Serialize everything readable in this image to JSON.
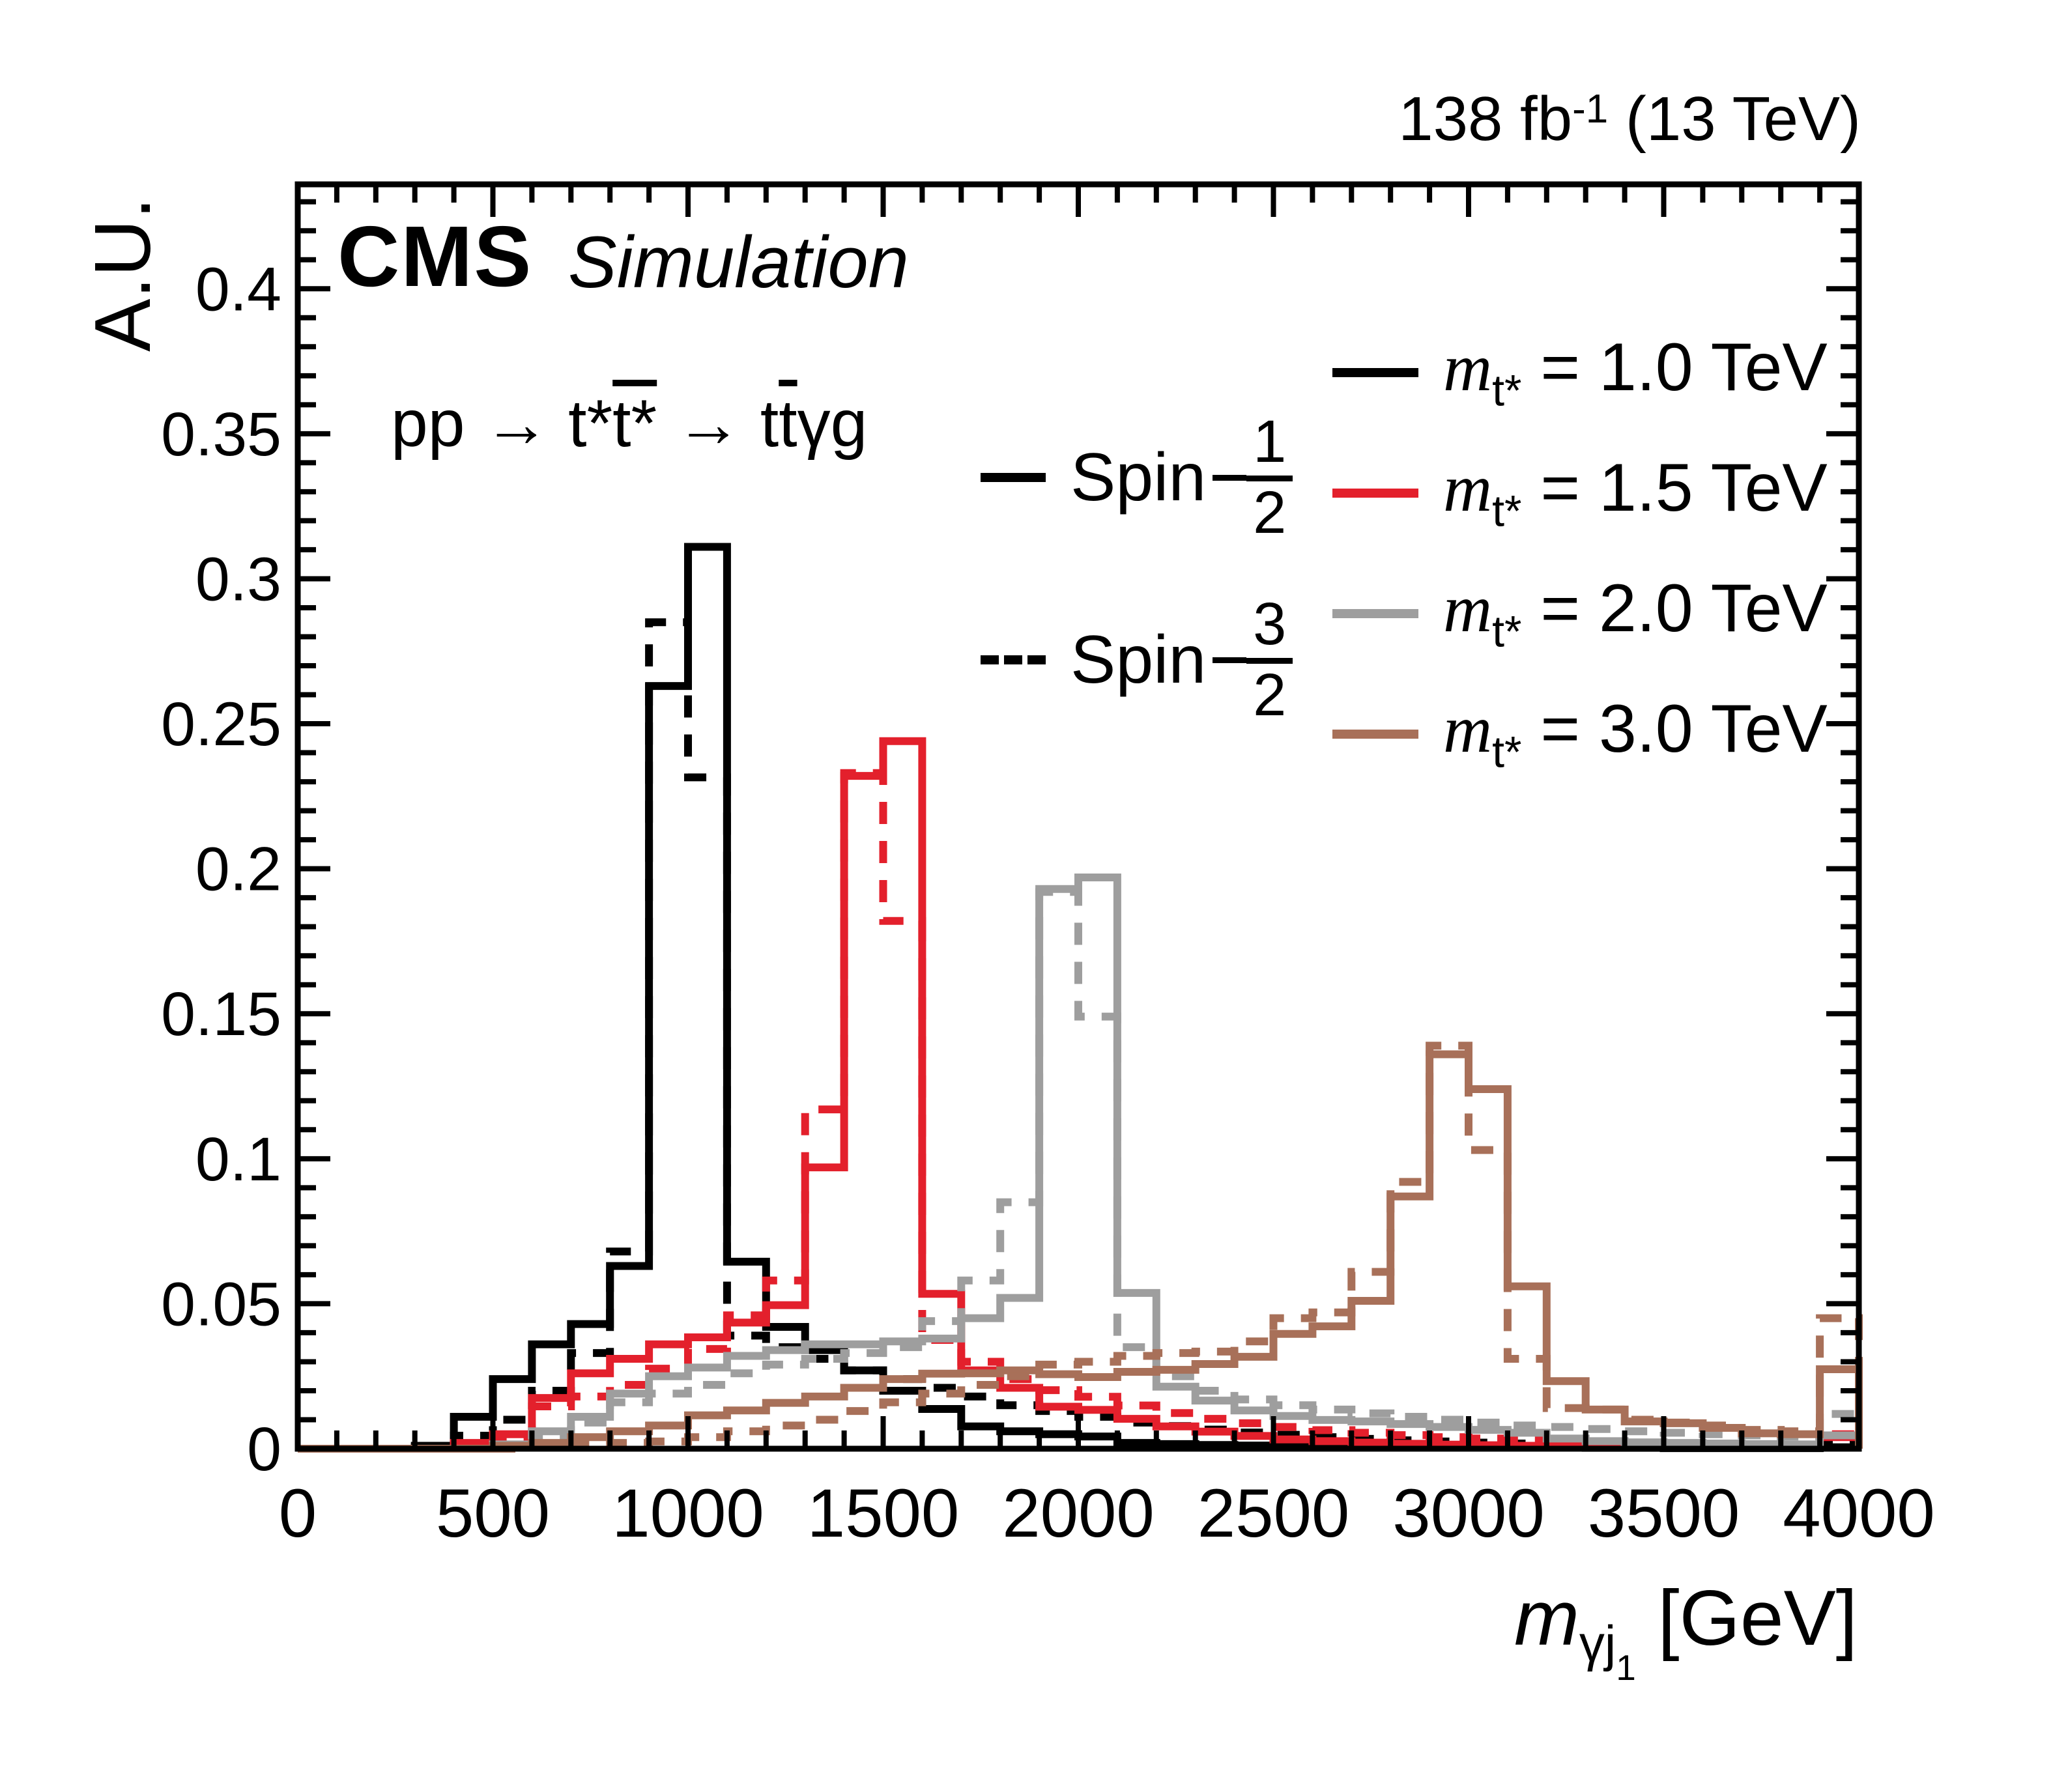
{
  "header": {
    "experiment": "CMS",
    "experiment_label": "Simulation",
    "lumi_a": "138 fb",
    "lumi_sup": "-1",
    "lumi_b": " (13 TeV)"
  },
  "process": {
    "a": "pp → t*",
    "ov1": "t*",
    "b": " → t",
    "ov2": "t",
    "c": "γg"
  },
  "axes": {
    "y_label": "A.U.",
    "x_label_symbol": "m",
    "x_label_sub": "γj",
    "x_label_subsub": "1",
    "x_label_unit": " [GeV]"
  },
  "legend_spin": [
    {
      "label": "Spin",
      "num": "1",
      "den": "2",
      "line": "solid"
    },
    {
      "label": "Spin",
      "num": "3",
      "den": "2",
      "line": "dashed"
    }
  ],
  "legend_mass": [
    {
      "m": "m",
      "sub": "t*",
      "rest": "= 1.0 TeV",
      "color": "#000000"
    },
    {
      "m": "m",
      "sub": "t*",
      "rest": "= 1.5 TeV",
      "color": "#e3202c"
    },
    {
      "m": "m",
      "sub": "t*",
      "rest": "= 2.0 TeV",
      "color": "#9e9e9e"
    },
    {
      "m": "m",
      "sub": "t*",
      "rest": "= 3.0 TeV",
      "color": "#a87059"
    }
  ],
  "chart_data": {
    "type": "histogram-step",
    "title": "CMS Simulation",
    "xlabel": "m_gamma-j1 [GeV]",
    "ylabel": "A.U.",
    "annotation": "pp -> t* t*bar -> t tbar gamma g",
    "lumi": "138 fb^-1 (13 TeV)",
    "xlim": [
      0,
      4000
    ],
    "ylim": [
      0,
      0.436
    ],
    "x_major_step": 500,
    "x_minor_step": 100,
    "y_major_step": 0.05,
    "y_minor_step": 0.01,
    "grid": false,
    "legend_position": "top-right",
    "bin_start": 0,
    "bin_width": 100,
    "n_bins": 40,
    "x_tick_labels": [
      "0",
      "500",
      "1000",
      "1500",
      "2000",
      "2500",
      "3000",
      "3500",
      "4000"
    ],
    "y_tick_labels": [
      "0",
      "0.05",
      "0.1",
      "0.15",
      "0.2",
      "0.25",
      "0.3",
      "0.35",
      "0.4"
    ],
    "series": [
      {
        "name": "m_t* = 1.0 TeV, Spin 1/2",
        "color": "#000000",
        "dashed": false,
        "values": [
          0,
          0,
          0,
          0.001,
          0.011,
          0.024,
          0.036,
          0.043,
          0.063,
          0.263,
          0.311,
          0.0645,
          0.042,
          0.034,
          0.027,
          0.02,
          0.0137,
          0.0077,
          0.006,
          0.005,
          0.0042,
          0.002,
          0.0016,
          0.0013,
          0.0011,
          0.0009,
          0.0008,
          0.0007,
          0.0006,
          0.0005,
          0.0005,
          0.0004,
          0.0004,
          0.0003,
          0.0003,
          0.0002,
          0.0002,
          0.0002,
          0.0002,
          0.0005
        ]
      },
      {
        "name": "m_t* = 1.0 TeV, Spin 3/2",
        "color": "#000000",
        "dashed": true,
        "values": [
          0,
          0,
          0,
          0.0005,
          0.0045,
          0.01,
          0.02,
          0.033,
          0.068,
          0.285,
          0.2315,
          0.039,
          0.035,
          0.031,
          0.027,
          0.024,
          0.021,
          0.018,
          0.015,
          0.013,
          0.011,
          0.009,
          0.0078,
          0.0066,
          0.0056,
          0.0048,
          0.004,
          0.0034,
          0.0029,
          0.0025,
          0.0021,
          0.0018,
          0.0015,
          0.0013,
          0.0011,
          0.001,
          0.0009,
          0.0008,
          0.0007,
          0.0015
        ]
      },
      {
        "name": "m_t* = 1.5 TeV, Spin 1/2",
        "color": "#e3202c",
        "dashed": false,
        "values": [
          0,
          0,
          0,
          0,
          0.002,
          0.005,
          0.0175,
          0.026,
          0.031,
          0.036,
          0.0384,
          0.0435,
          0.0495,
          0.097,
          0.232,
          0.244,
          0.0534,
          0.027,
          0.021,
          0.0145,
          0.0134,
          0.0103,
          0.0077,
          0.0059,
          0.0044,
          0.0032,
          0.0026,
          0.0021,
          0.0017,
          0.0014,
          0.0012,
          0.001,
          0.0009,
          0.0008,
          0.0007,
          0.0006,
          0.0005,
          0.0005,
          0.0004,
          0.004
        ]
      },
      {
        "name": "m_t* = 1.5 TeV, Spin 3/2",
        "color": "#e3202c",
        "dashed": true,
        "values": [
          0,
          0,
          0,
          0,
          0.001,
          0.003,
          0.0146,
          0.018,
          0.022,
          0.0276,
          0.0344,
          0.046,
          0.058,
          0.117,
          0.233,
          0.182,
          0.0375,
          0.03,
          0.024,
          0.0202,
          0.0179,
          0.0149,
          0.0123,
          0.0103,
          0.0088,
          0.0075,
          0.0064,
          0.0055,
          0.0047,
          0.004,
          0.0035,
          0.003,
          0.0026,
          0.0023,
          0.002,
          0.0018,
          0.0016,
          0.0014,
          0.0013,
          0.005
        ]
      },
      {
        "name": "m_t* = 2.0 TeV, Spin 1/2",
        "color": "#9e9e9e",
        "dashed": false,
        "values": [
          0,
          0,
          0,
          0,
          0,
          0.0015,
          0.006,
          0.011,
          0.019,
          0.025,
          0.028,
          0.032,
          0.034,
          0.036,
          0.036,
          0.037,
          0.038,
          0.045,
          0.052,
          0.193,
          0.197,
          0.0537,
          0.0214,
          0.0166,
          0.0132,
          0.0113,
          0.0099,
          0.0094,
          0.0085,
          0.0075,
          0.0065,
          0.0055,
          0.0035,
          0.0026,
          0.0022,
          0.002,
          0.0018,
          0.0016,
          0.0015,
          0.0046
        ]
      },
      {
        "name": "m_t* = 2.0 TeV, Spin 3/2",
        "color": "#9e9e9e",
        "dashed": true,
        "values": [
          0,
          0,
          0,
          0,
          0,
          0.001,
          0.004,
          0.009,
          0.016,
          0.019,
          0.022,
          0.026,
          0.029,
          0.031,
          0.033,
          0.035,
          0.044,
          0.058,
          0.085,
          0.192,
          0.149,
          0.035,
          0.025,
          0.02,
          0.017,
          0.015,
          0.0135,
          0.0122,
          0.011,
          0.01,
          0.009,
          0.008,
          0.0075,
          0.0068,
          0.006,
          0.0055,
          0.005,
          0.0046,
          0.0042,
          0.012
        ]
      },
      {
        "name": "m_t* = 3.0 TeV, Spin 1/2",
        "color": "#a87059",
        "dashed": false,
        "values": [
          0,
          0,
          0,
          0,
          0,
          0.001,
          0.002,
          0.004,
          0.006,
          0.008,
          0.0115,
          0.0132,
          0.0158,
          0.018,
          0.021,
          0.024,
          0.0259,
          0.026,
          0.027,
          0.0257,
          0.0247,
          0.0265,
          0.0272,
          0.0292,
          0.0317,
          0.0396,
          0.0422,
          0.051,
          0.087,
          0.136,
          0.124,
          0.056,
          0.0233,
          0.0135,
          0.0094,
          0.0088,
          0.0072,
          0.0053,
          0.005,
          0.0274
        ]
      },
      {
        "name": "m_t* = 3.0 TeV, Spin 3/2",
        "color": "#a87059",
        "dashed": true,
        "values": [
          0,
          0,
          0,
          0,
          0,
          0,
          0.001,
          0.0015,
          0.002,
          0.0025,
          0.004,
          0.006,
          0.008,
          0.01,
          0.013,
          0.016,
          0.019,
          0.022,
          0.025,
          0.029,
          0.03,
          0.032,
          0.033,
          0.0335,
          0.037,
          0.045,
          0.047,
          0.061,
          0.092,
          0.139,
          0.103,
          0.031,
          0.014,
          0.0135,
          0.01,
          0.009,
          0.008,
          0.0065,
          0.006,
          0.045
        ]
      }
    ]
  }
}
